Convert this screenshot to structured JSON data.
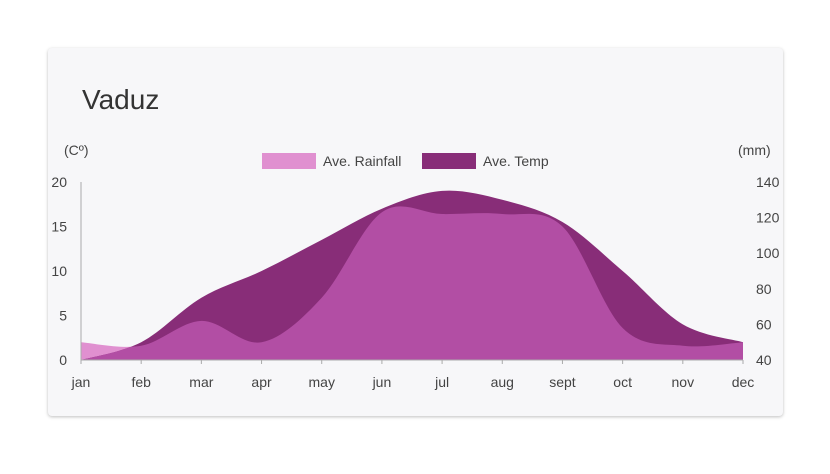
{
  "chart_data": {
    "type": "area",
    "title": "Vaduz",
    "categories": [
      "jan",
      "feb",
      "mar",
      "apr",
      "may",
      "jun",
      "jul",
      "aug",
      "sept",
      "oct",
      "nov",
      "dec"
    ],
    "series": [
      {
        "name": "Ave. Rainfall",
        "axis": "right",
        "unit": "(mm)",
        "color": "#e090d0",
        "values": [
          50,
          48,
          62,
          50,
          75,
          123,
          122,
          122,
          115,
          58,
          48,
          50
        ]
      },
      {
        "name": "Ave. Temp",
        "axis": "left",
        "unit": "(Cº)",
        "color": "#882d78",
        "values": [
          0,
          2,
          7,
          10,
          13.5,
          17,
          19,
          18,
          15.5,
          10,
          4,
          2
        ]
      }
    ],
    "overlap_color": "#b24ea4",
    "left_axis": {
      "label": "(Cº)",
      "ticks": [
        "0",
        "5",
        "10",
        "15",
        "20"
      ],
      "ylim": [
        0,
        20
      ]
    },
    "right_axis": {
      "label": "(mm)",
      "ticks": [
        "40",
        "60",
        "80",
        "100",
        "120",
        "140"
      ],
      "ylim": [
        40,
        140
      ]
    },
    "legend": "top-center",
    "grid": false
  }
}
